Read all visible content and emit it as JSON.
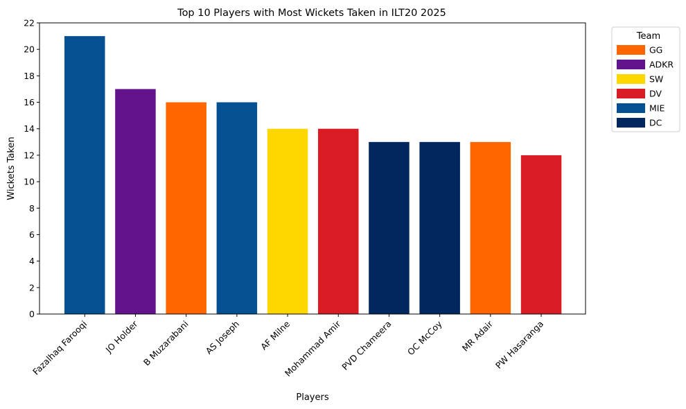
{
  "chart_data": {
    "type": "bar",
    "title": "Top 10 Players with Most Wickets Taken in ILT20 2025",
    "xlabel": "Players",
    "ylabel": "Wickets Taken",
    "ylim": [
      0,
      22
    ],
    "yticks": [
      0,
      2,
      4,
      6,
      8,
      10,
      12,
      14,
      16,
      18,
      20,
      22
    ],
    "grid": false,
    "legend_position": "outside-top-right",
    "categories": [
      "Fazalhaq Farooqi",
      "JO Holder",
      "B Muzarabani",
      "AS Joseph",
      "AF Milne",
      "Mohammad Amir",
      "PVD Chameera",
      "OC McCoy",
      "MR Adair",
      "PW Hasaranga"
    ],
    "values": [
      21,
      17,
      16,
      16,
      14,
      14,
      13,
      13,
      13,
      12
    ],
    "teams": [
      "MIE",
      "ADKR",
      "GG",
      "MIE",
      "SW",
      "DV",
      "DC",
      "DC",
      "GG",
      "DV"
    ],
    "legend": {
      "title": "Team",
      "entries": [
        {
          "label": "GG",
          "color": "#FF6600"
        },
        {
          "label": "ADKR",
          "color": "#63138C"
        },
        {
          "label": "SW",
          "color": "#FFD700"
        },
        {
          "label": "DV",
          "color": "#D91C24"
        },
        {
          "label": "MIE",
          "color": "#045093"
        },
        {
          "label": "DC",
          "color": "#00285E"
        }
      ]
    }
  }
}
